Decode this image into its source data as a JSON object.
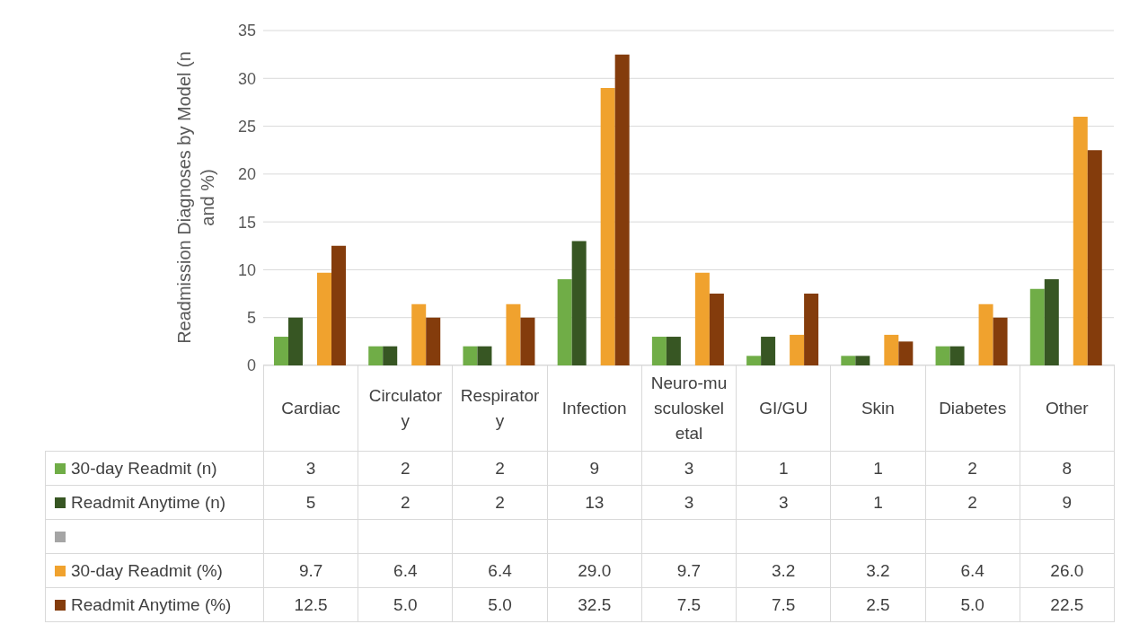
{
  "chart_data": {
    "type": "bar",
    "ylabel": "Readmission Diagnoses by Model (n and %)",
    "categories": [
      "Cardiac",
      "Circulatory",
      "Respiratory",
      "Infection",
      "Neuro-musculoskeletal",
      "GI/GU",
      "Skin",
      "Diabetes",
      "Other"
    ],
    "series": [
      {
        "name": "30-day Readmit (n)",
        "color": "#70ad47",
        "values": [
          3,
          2,
          2,
          9,
          3,
          1,
          1,
          2,
          8
        ],
        "value_labels": [
          "3",
          "2",
          "2",
          "9",
          "3",
          "1",
          "1",
          "2",
          "8"
        ]
      },
      {
        "name": "Readmit Anytime (n)",
        "color": "#375623",
        "values": [
          5,
          2,
          2,
          13,
          3,
          3,
          1,
          2,
          9
        ],
        "value_labels": [
          "5",
          "2",
          "2",
          "13",
          "3",
          "3",
          "1",
          "2",
          "9"
        ]
      },
      {
        "color": "#a5a5a5",
        "values": [
          null,
          null,
          null,
          null,
          null,
          null,
          null,
          null,
          null
        ],
        "value_labels": [
          null,
          null,
          null,
          null,
          null,
          null,
          null,
          null,
          null
        ]
      },
      {
        "name": "30-day Readmit (%)",
        "color": "#f0a22e",
        "values": [
          9.7,
          6.4,
          6.4,
          29.0,
          9.7,
          3.2,
          3.2,
          6.4,
          26.0
        ],
        "value_labels": [
          "9.7",
          "6.4",
          "6.4",
          "29.0",
          "9.7",
          "3.2",
          "3.2",
          "6.4",
          "26.0"
        ]
      },
      {
        "name": "Readmit Anytime (%)",
        "color": "#843c0c",
        "values": [
          12.5,
          5.0,
          5.0,
          32.5,
          7.5,
          7.5,
          2.5,
          5.0,
          22.5
        ],
        "value_labels": [
          "12.5",
          "5.0",
          "5.0",
          "32.5",
          "7.5",
          "7.5",
          "2.5",
          "5.0",
          "22.5"
        ]
      }
    ],
    "ylim": [
      0,
      35
    ],
    "yticks": [
      0,
      5,
      10,
      15,
      20,
      25,
      30,
      35
    ],
    "grid": "y",
    "legend": "bottom"
  }
}
